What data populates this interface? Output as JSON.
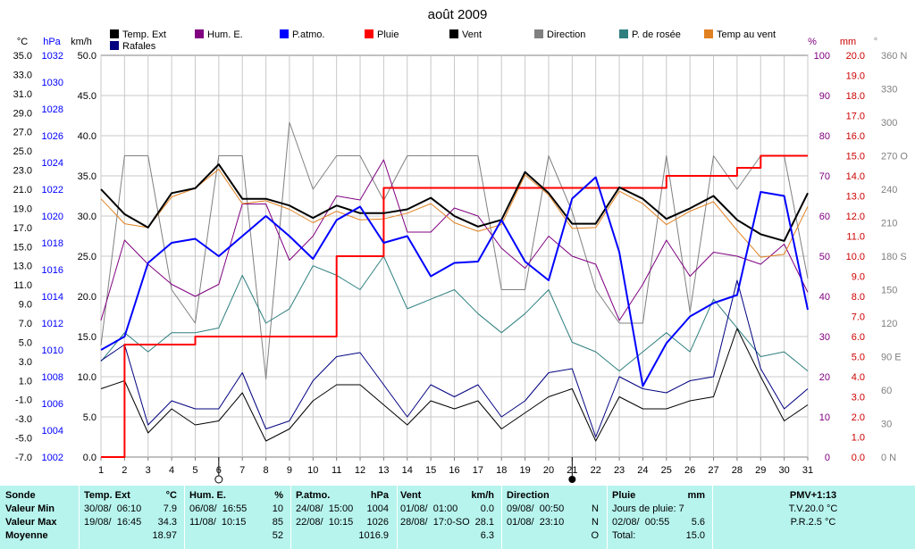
{
  "chart_data": {
    "type": "line",
    "title": "août 2009",
    "x": [
      1,
      2,
      3,
      4,
      5,
      6,
      7,
      8,
      9,
      10,
      11,
      12,
      13,
      14,
      15,
      16,
      17,
      18,
      19,
      20,
      21,
      22,
      23,
      24,
      25,
      26,
      27,
      28,
      29,
      30,
      31
    ],
    "xlim": [
      1,
      31
    ],
    "grid": true,
    "axes": {
      "left_celsius": {
        "unit": "°C",
        "range": [
          -7.0,
          35.0
        ],
        "ticks": [
          "35.0",
          "33.0",
          "31.0",
          "29.0",
          "27.0",
          "25.0",
          "23.0",
          "21.0",
          "19.0",
          "17.0",
          "15.0",
          "13.0",
          "11.0",
          "9.0",
          "7.0",
          "5.0",
          "3.0",
          "1.0",
          "-1.0",
          "-3.0",
          "-5.0",
          "-7.0"
        ]
      },
      "left_hpa": {
        "unit": "hPa",
        "range": [
          1002,
          1032
        ],
        "ticks": [
          "1032",
          "1030",
          "1028",
          "1026",
          "1024",
          "1022",
          "1020",
          "1018",
          "1016",
          "1014",
          "1012",
          "1010",
          "1008",
          "1006",
          "1004",
          "1002"
        ]
      },
      "left_kmh": {
        "unit": "km/h",
        "range": [
          0,
          50
        ],
        "ticks": [
          "50.0",
          "45.0",
          "40.0",
          "35.0",
          "30.0",
          "25.0",
          "20.0",
          "15.0",
          "10.0",
          "5.0",
          "0.0"
        ]
      },
      "right_percent": {
        "unit": "%",
        "range": [
          0,
          100
        ],
        "ticks": [
          "100",
          "90",
          "80",
          "70",
          "60",
          "50",
          "40",
          "30",
          "20",
          "10",
          "0"
        ]
      },
      "right_mm": {
        "unit": "mm",
        "range": [
          0,
          20
        ],
        "ticks": [
          "20.0",
          "19.0",
          "18.0",
          "17.0",
          "16.0",
          "15.0",
          "14.0",
          "13.0",
          "12.0",
          "11.0",
          "10.0",
          "9.0",
          "8.0",
          "7.0",
          "6.0",
          "5.0",
          "4.0",
          "3.0",
          "2.0",
          "1.0",
          "0.0"
        ]
      },
      "right_deg": {
        "unit": "°",
        "range": [
          0,
          360
        ],
        "ticks": [
          "360 N",
          "330",
          "300",
          "270 O",
          "240",
          "210",
          "180 S",
          "150",
          "120",
          "90 E",
          "60",
          "30",
          "0 N"
        ]
      }
    },
    "legend_position": "top",
    "series": [
      {
        "name": "Temp. Ext",
        "color": "#000000",
        "axis": "left_celsius",
        "width": 2,
        "values": [
          21,
          18.4,
          17,
          20.6,
          21.1,
          23.6,
          20,
          20,
          19.3,
          18,
          19.3,
          18.5,
          18.5,
          18.9,
          20.1,
          18.2,
          17.1,
          17.8,
          22.8,
          20.6,
          17.4,
          17.4,
          21.2,
          20,
          17.9,
          19,
          20.3,
          17.8,
          16.3,
          15.6,
          20.6
        ]
      },
      {
        "name": "Rafales",
        "color": "#000080",
        "axis": "left_kmh",
        "width": 1,
        "values": [
          12,
          14,
          4,
          7,
          6,
          6,
          10.5,
          3.5,
          4.5,
          9.5,
          12.5,
          13,
          9,
          5,
          9,
          7.5,
          9,
          5,
          7,
          10.5,
          11,
          2.5,
          10,
          8.5,
          8,
          9.5,
          10,
          22,
          11,
          6,
          8.5
        ]
      },
      {
        "name": "Vent",
        "color": "#000000",
        "axis": "left_kmh",
        "width": 1,
        "values": [
          8.5,
          9.5,
          3,
          6,
          4,
          4.5,
          8,
          2,
          3.5,
          7,
          9,
          9,
          6.5,
          4,
          7,
          6,
          7,
          3.5,
          5.5,
          7.5,
          8.5,
          2,
          7.5,
          6,
          6,
          7,
          7.5,
          16,
          10,
          4.5,
          6.5
        ]
      },
      {
        "name": "Hum. E.",
        "color": "#800080",
        "axis": "right_percent",
        "width": 1,
        "values": [
          34,
          54,
          48,
          43,
          40,
          43,
          63,
          63,
          49,
          55,
          65,
          64,
          74,
          56,
          56,
          62,
          60,
          52,
          47,
          55,
          50,
          48,
          34,
          43,
          54,
          45,
          51,
          50,
          48,
          53,
          41
        ]
      },
      {
        "name": "P.atmo.",
        "color": "#0000ff",
        "axis": "left_hpa",
        "width": 2,
        "values": [
          1010,
          1011,
          1016.5,
          1018,
          1018.3,
          1017,
          1018.5,
          1020,
          1018.5,
          1016.8,
          1019.7,
          1020.7,
          1018,
          1018.5,
          1015.5,
          1016.5,
          1016.6,
          1019.7,
          1016.6,
          1015.2,
          1021.3,
          1022.9,
          1017.3,
          1007.3,
          1010.5,
          1012.5,
          1013.5,
          1014.1,
          1021.8,
          1021.5,
          1013
        ]
      },
      {
        "name": "Pluie",
        "color": "#ff0000",
        "axis": "right_mm",
        "width": 2,
        "values": [
          0,
          5.6,
          5.6,
          5.6,
          6.0,
          6.0,
          6.0,
          6.0,
          6.0,
          6.0,
          10.0,
          10.0,
          13.4,
          13.4,
          13.4,
          13.4,
          13.4,
          13.4,
          13.4,
          13.4,
          13.4,
          13.4,
          13.4,
          13.4,
          14.0,
          14.0,
          14.0,
          14.4,
          15.0,
          15.0,
          15.0
        ]
      },
      {
        "name": "Direction",
        "color": "#808080",
        "axis": "right_deg",
        "width": 1,
        "values": [
          100,
          270,
          270,
          150,
          120,
          270,
          270,
          70,
          300,
          240,
          270,
          270,
          230,
          270,
          270,
          270,
          270,
          150,
          150,
          270,
          220,
          150,
          120,
          120,
          270,
          130,
          270,
          240,
          270,
          270,
          160
        ]
      },
      {
        "name": "P. de rosée",
        "color": "#2f7f7f",
        "axis": "left_celsius",
        "width": 1,
        "values": [
          3,
          6,
          4,
          6,
          6,
          6.5,
          12,
          7,
          8.5,
          13,
          12,
          10.5,
          14,
          8.5,
          9.5,
          10.5,
          8,
          6,
          8,
          10.5,
          5,
          4,
          2,
          4,
          6,
          4,
          9.5,
          6.5,
          3.5,
          4,
          2
        ]
      },
      {
        "name": "Temp au vent",
        "color": "#e08020",
        "axis": "left_celsius",
        "width": 1,
        "values": [
          20,
          17.4,
          17,
          20.2,
          21.1,
          23.1,
          19.5,
          19.8,
          18.9,
          17.5,
          18.7,
          17.8,
          17.9,
          18.5,
          19.5,
          17.5,
          16.6,
          17.3,
          22.5,
          20.4,
          16.9,
          17,
          20.8,
          19.5,
          17.3,
          18.7,
          19.7,
          16.7,
          13.9,
          14.2,
          19.2
        ]
      }
    ],
    "legend_columns": [
      [
        "Temp. Ext",
        "Rafales"
      ],
      [
        "Hum. E."
      ],
      [
        "P.atmo."
      ],
      [
        "Pluie"
      ],
      [
        "Vent"
      ],
      [
        "Direction"
      ],
      [
        "P. de rosée"
      ],
      [
        "Temp au vent"
      ]
    ],
    "moon_phases": [
      {
        "day": 6,
        "phase": "new-outline"
      },
      {
        "day": 21,
        "phase": "full"
      }
    ]
  },
  "summary": {
    "labels": {
      "title": "Sonde",
      "min": "Valeur Min",
      "max": "Valeur Max",
      "avg": "Moyenne"
    },
    "temp": {
      "title": "Temp. Ext",
      "unit": "°C",
      "min_time": "30/08/  06:10",
      "min_val": "7.9",
      "max_time": "19/08/  16:45",
      "max_val": "34.3",
      "avg": "18.97"
    },
    "hum": {
      "title": "Hum. E.",
      "unit": "%",
      "min_time": "06/08/  16:55",
      "min_val": "10",
      "max_time": "11/08/  10:15",
      "max_val": "85",
      "avg": "52"
    },
    "patmo": {
      "title": "P.atmo.",
      "unit": "hPa",
      "min_time": "24/08/  15:00",
      "min_val": "1004",
      "max_time": "22/08/  10:15",
      "max_val": "1026",
      "avg": "1016.9"
    },
    "vent": {
      "title": "Vent",
      "unit": "km/h",
      "min_time": "01/08/  01:00",
      "min_val": "0.0",
      "max_time": "28/08/  17:0-SO",
      "max_val": "28.1",
      "avg": "6.3"
    },
    "dir": {
      "title": "Direction",
      "min_time": "09/08/  00:50",
      "min_val": "N",
      "max_time": "01/08/  23:10",
      "max_val": "N",
      "avg": "O"
    },
    "pluie": {
      "title": "Pluie",
      "unit": "mm",
      "line1": "Jours de pluie: 7",
      "max_time": "02/08/  00:55",
      "max_val": "5.6",
      "total_label": "Total:",
      "total_val": "15.0"
    },
    "pmv": {
      "title": "PMV+1:13",
      "tv": "T.V.20.0 °C",
      "pr": "P.R.2.5 °C"
    }
  }
}
